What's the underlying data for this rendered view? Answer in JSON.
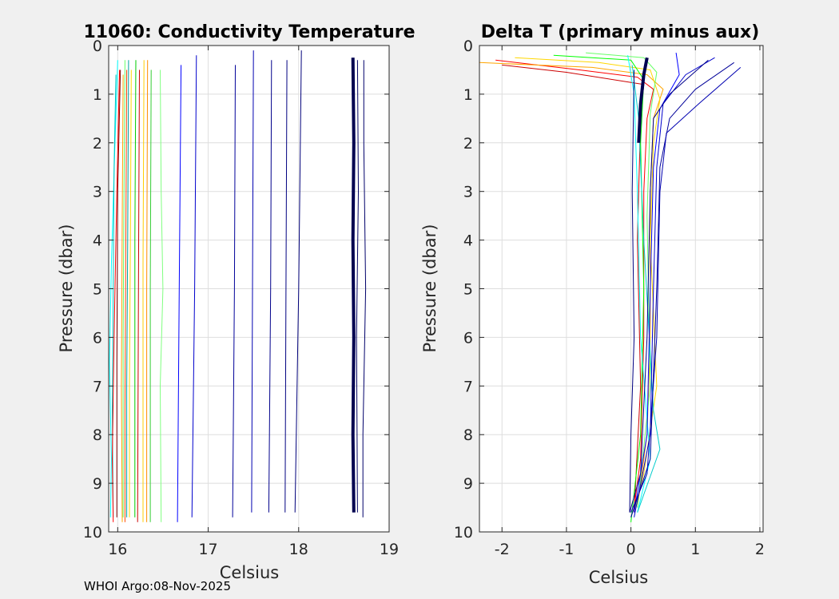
{
  "footer": "WHOI Argo:08-Nov-2025",
  "chart_data": [
    {
      "type": "line",
      "title": "11060: Conductivity Temperature",
      "xlabel": "Celsius",
      "ylabel": "Pressure (dbar)",
      "xlim": [
        15.9,
        19
      ],
      "ylim": [
        0,
        10
      ],
      "y_reversed": true,
      "xticks": [
        "16",
        "17",
        "18",
        "19"
      ],
      "yticks": [
        "0",
        "1",
        "2",
        "3",
        "4",
        "5",
        "6",
        "7",
        "8",
        "9",
        "10"
      ],
      "grid": true,
      "series": [
        {
          "color": "#00ffff",
          "values": [
            [
              16.0,
              0.3
            ],
            [
              15.97,
              2.0
            ],
            [
              15.93,
              4.5
            ],
            [
              15.91,
              6.5
            ],
            [
              15.93,
              8.5
            ],
            [
              15.92,
              9.7
            ]
          ]
        },
        {
          "color": "#00c0c0",
          "values": [
            [
              15.98,
              0.6
            ],
            [
              15.96,
              2.5
            ],
            [
              15.95,
              5.0
            ],
            [
              15.94,
              7.5
            ],
            [
              15.95,
              9.7
            ]
          ]
        },
        {
          "color": "#ff0000",
          "values": [
            [
              16.02,
              0.5
            ],
            [
              15.99,
              3.0
            ],
            [
              15.96,
              6.0
            ],
            [
              15.94,
              8.5
            ],
            [
              15.95,
              9.8
            ]
          ]
        },
        {
          "color": "#800000",
          "values": [
            [
              16.03,
              0.5
            ],
            [
              16.0,
              3.0
            ],
            [
              15.99,
              6.5
            ],
            [
              15.99,
              9.7
            ]
          ]
        },
        {
          "color": "#ffa500",
          "values": [
            [
              16.06,
              0.6
            ],
            [
              16.05,
              3.5
            ],
            [
              16.04,
              7.0
            ],
            [
              16.05,
              9.8
            ]
          ]
        },
        {
          "color": "#66ff66",
          "values": [
            [
              16.08,
              0.3
            ],
            [
              16.07,
              3.0
            ],
            [
              16.06,
              6.0
            ],
            [
              16.06,
              9.7
            ]
          ]
        },
        {
          "color": "#ff4500",
          "values": [
            [
              16.1,
              0.5
            ],
            [
              16.09,
              4.0
            ],
            [
              16.08,
              7.5
            ],
            [
              16.08,
              9.8
            ]
          ]
        },
        {
          "color": "#00a0a0",
          "values": [
            [
              16.12,
              0.3
            ],
            [
              16.11,
              4.0
            ],
            [
              16.1,
              7.0
            ],
            [
              16.1,
              9.7
            ]
          ]
        },
        {
          "color": "#ffd700",
          "values": [
            [
              16.15,
              0.5
            ],
            [
              16.14,
              4.0
            ],
            [
              16.13,
              7.0
            ],
            [
              16.13,
              9.7
            ]
          ]
        },
        {
          "color": "#00cc00",
          "values": [
            [
              16.2,
              0.3
            ],
            [
              16.19,
              4.0
            ],
            [
              16.19,
              7.5
            ],
            [
              16.19,
              9.7
            ]
          ]
        },
        {
          "color": "#cc0000",
          "values": [
            [
              16.24,
              0.5
            ],
            [
              16.23,
              4.5
            ],
            [
              16.22,
              9.8
            ]
          ]
        },
        {
          "color": "#ffcc00",
          "values": [
            [
              16.29,
              0.3
            ],
            [
              16.28,
              4.5
            ],
            [
              16.28,
              9.8
            ]
          ]
        },
        {
          "color": "#ff8c00",
          "values": [
            [
              16.33,
              0.3
            ],
            [
              16.32,
              5.0
            ],
            [
              16.32,
              9.8
            ]
          ]
        },
        {
          "color": "#33cc33",
          "values": [
            [
              16.37,
              0.5
            ],
            [
              16.36,
              5.0
            ],
            [
              16.36,
              9.8
            ]
          ]
        },
        {
          "color": "#80ff80",
          "values": [
            [
              16.47,
              0.5
            ],
            [
              16.48,
              3.0
            ],
            [
              16.5,
              5.0
            ],
            [
              16.47,
              7.0
            ],
            [
              16.48,
              9.8
            ]
          ]
        },
        {
          "color": "#0000ff",
          "values": [
            [
              16.7,
              0.4
            ],
            [
              16.68,
              5.0
            ],
            [
              16.66,
              9.8
            ]
          ]
        },
        {
          "color": "#0000cc",
          "values": [
            [
              16.87,
              0.2
            ],
            [
              16.85,
              5.0
            ],
            [
              16.82,
              9.7
            ]
          ]
        },
        {
          "color": "#000099",
          "values": [
            [
              17.3,
              0.4
            ],
            [
              17.29,
              5.0
            ],
            [
              17.27,
              9.7
            ]
          ]
        },
        {
          "color": "#0000b0",
          "values": [
            [
              17.5,
              0.1
            ],
            [
              17.49,
              5.0
            ],
            [
              17.48,
              9.6
            ]
          ]
        },
        {
          "color": "#00008b",
          "values": [
            [
              17.7,
              0.3
            ],
            [
              17.69,
              5.0
            ],
            [
              17.67,
              9.6
            ]
          ]
        },
        {
          "color": "#000080",
          "values": [
            [
              17.87,
              0.3
            ],
            [
              17.86,
              5.0
            ],
            [
              17.85,
              9.6
            ]
          ]
        },
        {
          "color": "#00007a",
          "values": [
            [
              18.03,
              0.1
            ],
            [
              18.0,
              5.0
            ],
            [
              17.96,
              9.6
            ]
          ]
        },
        {
          "color": "#000050",
          "thick": true,
          "values": [
            [
              18.6,
              0.25
            ],
            [
              18.61,
              2.0
            ],
            [
              18.6,
              4.0
            ],
            [
              18.61,
              6.0
            ],
            [
              18.6,
              8.0
            ],
            [
              18.61,
              9.6
            ]
          ]
        },
        {
          "color": "#000060",
          "values": [
            [
              18.65,
              0.3
            ],
            [
              18.66,
              3.0
            ],
            [
              18.64,
              6.0
            ],
            [
              18.65,
              9.6
            ]
          ]
        },
        {
          "color": "#00006a",
          "values": [
            [
              18.72,
              0.3
            ],
            [
              18.72,
              2.0
            ],
            [
              18.74,
              5.0
            ],
            [
              18.71,
              8.0
            ],
            [
              18.71,
              9.7
            ]
          ]
        }
      ]
    },
    {
      "type": "line",
      "title": "Delta T (primary minus aux)",
      "xlabel": "Celsius",
      "ylabel": "Pressure (dbar)",
      "xlim": [
        -2.35,
        2.05
      ],
      "ylim": [
        0,
        10
      ],
      "y_reversed": true,
      "xticks": [
        "-2",
        "-1",
        "0",
        "1",
        "2"
      ],
      "yticks": [
        "0",
        "1",
        "2",
        "3",
        "4",
        "5",
        "6",
        "7",
        "8",
        "9",
        "10"
      ],
      "grid": true,
      "series": [
        {
          "color": "#ff0000",
          "values": [
            [
              -2.1,
              0.3
            ],
            [
              -0.8,
              0.5
            ],
            [
              0.1,
              0.65
            ],
            [
              0.35,
              0.9
            ],
            [
              0.25,
              1.5
            ],
            [
              0.2,
              3.0
            ],
            [
              0.2,
              6.0
            ],
            [
              0.15,
              8.5
            ],
            [
              0.05,
              9.5
            ]
          ]
        },
        {
          "color": "#ffa500",
          "values": [
            [
              -2.35,
              0.35
            ],
            [
              -0.6,
              0.45
            ],
            [
              0.25,
              0.6
            ],
            [
              0.5,
              0.9
            ],
            [
              0.35,
              1.5
            ],
            [
              0.3,
              3.0
            ],
            [
              0.3,
              6.0
            ],
            [
              0.25,
              8.0
            ],
            [
              0.1,
              9.5
            ]
          ]
        },
        {
          "color": "#ffd700",
          "values": [
            [
              -1.8,
              0.25
            ],
            [
              -0.5,
              0.35
            ],
            [
              0.3,
              0.5
            ],
            [
              0.45,
              1.1
            ],
            [
              0.35,
              2.0
            ],
            [
              0.3,
              4.0
            ],
            [
              0.4,
              7.0
            ],
            [
              0.2,
              8.8
            ],
            [
              0.05,
              9.6
            ]
          ]
        },
        {
          "color": "#cc0000",
          "values": [
            [
              -2.0,
              0.4
            ],
            [
              -1.0,
              0.55
            ],
            [
              0.2,
              0.8
            ],
            [
              0.15,
              1.5
            ],
            [
              0.1,
              4.0
            ],
            [
              0.15,
              7.0
            ],
            [
              0.05,
              9.6
            ]
          ]
        },
        {
          "color": "#66ff66",
          "values": [
            [
              -0.7,
              0.15
            ],
            [
              0.2,
              0.25
            ],
            [
              0.4,
              0.55
            ],
            [
              0.3,
              1.4
            ],
            [
              0.25,
              3.5
            ],
            [
              0.3,
              7.0
            ],
            [
              0.1,
              9.5
            ]
          ]
        },
        {
          "color": "#00ff00",
          "values": [
            [
              -1.2,
              0.2
            ],
            [
              0.0,
              0.3
            ],
            [
              0.2,
              0.7
            ],
            [
              0.15,
              2.0
            ],
            [
              0.2,
              5.0
            ],
            [
              0.15,
              8.0
            ],
            [
              0.0,
              9.8
            ]
          ]
        },
        {
          "color": "#00ffff",
          "values": [
            [
              -0.05,
              0.2
            ],
            [
              0.05,
              1.0
            ],
            [
              0.1,
              3.0
            ],
            [
              0.15,
              6.0
            ],
            [
              0.3,
              8.5
            ],
            [
              0.1,
              9.6
            ]
          ]
        },
        {
          "color": "#00cccc",
          "values": [
            [
              0.02,
              0.4
            ],
            [
              0.12,
              1.5
            ],
            [
              0.2,
              4.0
            ],
            [
              0.35,
              7.5
            ],
            [
              0.45,
              8.3
            ],
            [
              0.1,
              9.6
            ]
          ]
        },
        {
          "color": "#0000ff",
          "values": [
            [
              0.7,
              0.15
            ],
            [
              0.75,
              0.6
            ],
            [
              0.45,
              1.3
            ],
            [
              0.35,
              2.5
            ],
            [
              0.3,
              5.0
            ],
            [
              0.25,
              8.0
            ],
            [
              0.05,
              9.6
            ]
          ]
        },
        {
          "color": "#0000cc",
          "values": [
            [
              1.3,
              0.25
            ],
            [
              0.85,
              0.6
            ],
            [
              0.5,
              1.2
            ],
            [
              0.4,
              2.5
            ],
            [
              0.35,
              5.0
            ],
            [
              0.3,
              8.0
            ],
            [
              0.05,
              9.7
            ]
          ]
        },
        {
          "color": "#000099",
          "values": [
            [
              1.6,
              0.35
            ],
            [
              1.0,
              0.9
            ],
            [
              0.6,
              1.5
            ],
            [
              0.45,
              2.5
            ],
            [
              0.4,
              5.0
            ],
            [
              0.3,
              8.5
            ],
            [
              0.0,
              9.7
            ]
          ]
        },
        {
          "color": "#0000b0",
          "values": [
            [
              1.7,
              0.45
            ],
            [
              1.05,
              1.2
            ],
            [
              0.55,
              1.8
            ],
            [
              0.45,
              3.0
            ],
            [
              0.4,
              6.0
            ],
            [
              0.25,
              8.8
            ],
            [
              0.0,
              9.6
            ]
          ]
        },
        {
          "color": "#00008b",
          "values": [
            [
              1.2,
              0.3
            ],
            [
              0.6,
              1.0
            ],
            [
              0.35,
              1.5
            ],
            [
              0.3,
              3.0
            ],
            [
              0.25,
              6.0
            ],
            [
              0.15,
              8.8
            ],
            [
              -0.02,
              9.6
            ]
          ]
        },
        {
          "color": "#000080",
          "values": [
            [
              0.05,
              0.5
            ],
            [
              0.02,
              3.0
            ],
            [
              0.05,
              6.0
            ],
            [
              0.0,
              8.0
            ],
            [
              -0.02,
              9.6
            ]
          ]
        },
        {
          "color": "#000050",
          "thick": true,
          "values": [
            [
              0.25,
              0.25
            ],
            [
              0.2,
              0.6
            ],
            [
              0.15,
              1.2
            ],
            [
              0.12,
              2.0
            ]
          ]
        }
      ]
    }
  ]
}
